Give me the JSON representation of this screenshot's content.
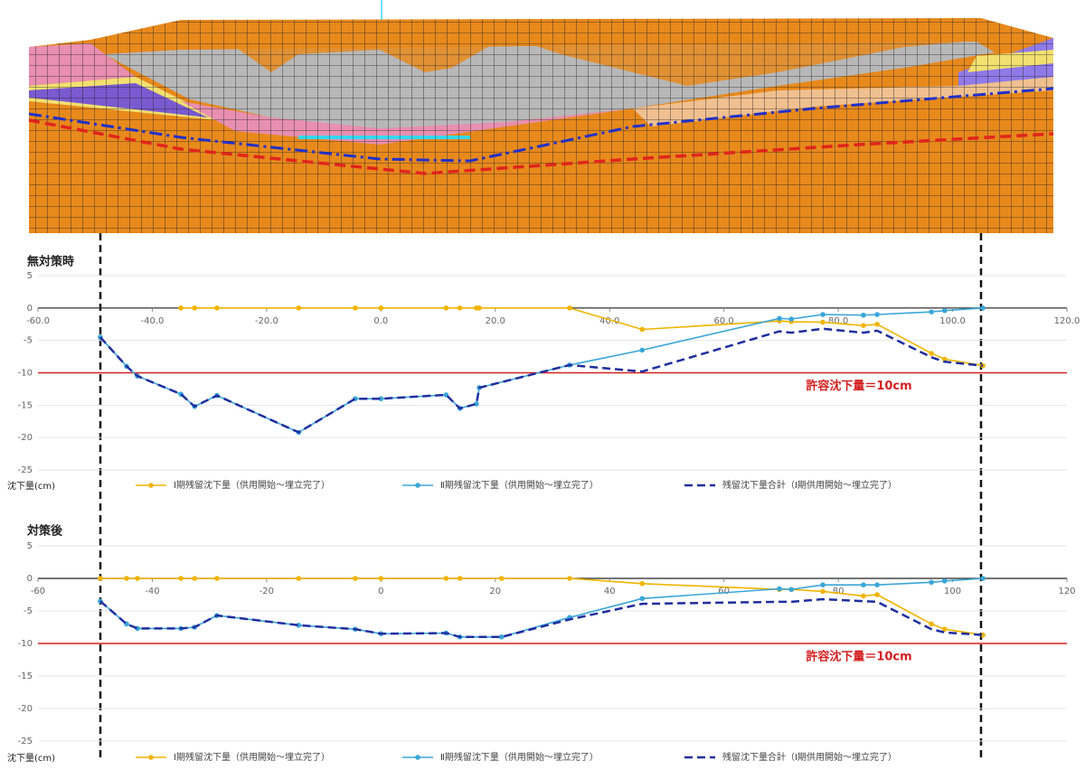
{
  "chart_data": [
    {
      "type": "line",
      "title": "無対策時",
      "y_label": "沈下量(cm)",
      "x": [
        -49.1,
        -44.5,
        -42.6,
        -35.0,
        -32.6,
        -28.7,
        -14.4,
        -4.5,
        0,
        11.4,
        13.8,
        16.7,
        17.2,
        33.0,
        45.7,
        69.7,
        71.8,
        77.3,
        84.4,
        86.8,
        96.3,
        98.6,
        105.3
      ],
      "xlim": [
        -60,
        120
      ],
      "xticks": [
        {
          "value": -60,
          "label": "-60.0"
        },
        {
          "value": -40,
          "label": "-40.0"
        },
        {
          "value": -20,
          "label": "-20.0"
        },
        {
          "value": 0,
          "label": "0.0"
        },
        {
          "value": 20,
          "label": "20.0"
        },
        {
          "value": 40,
          "label": "40.0"
        },
        {
          "value": 60,
          "label": "60.0"
        },
        {
          "value": 80,
          "label": "80.0"
        },
        {
          "value": 100,
          "label": "100.0"
        },
        {
          "value": 120,
          "label": "120.0"
        }
      ],
      "ylim": [
        -25,
        5
      ],
      "yticks": [
        5,
        0,
        -5,
        -10,
        -15,
        -20,
        -25
      ],
      "grid": true,
      "series": [
        {
          "name": "Ⅰ期残留沈下量（供用開始～埋立完了）",
          "color": "#f0b400",
          "markers": true,
          "dashed": false,
          "values": [
            null,
            null,
            null,
            0,
            0,
            0,
            0,
            0,
            0,
            0,
            0,
            0,
            0,
            0,
            -3.3,
            -2.0,
            -2.1,
            -2.2,
            -2.7,
            -2.5,
            -7.0,
            -7.9,
            -8.9
          ]
        },
        {
          "name": "Ⅱ期残留沈下量（供用開始～埋立完了）",
          "color": "#3aa6d8",
          "markers": true,
          "dashed": false,
          "values": [
            -4.5,
            -9.0,
            -10.5,
            -13.3,
            -15.2,
            -13.5,
            -19.2,
            -14.0,
            -14.0,
            -13.4,
            -15.5,
            -14.8,
            -12.3,
            -8.8,
            -6.5,
            -1.6,
            -1.7,
            -1.0,
            -1.1,
            -1.0,
            -0.6,
            -0.4,
            0
          ]
        },
        {
          "name": "残留沈下量合計（Ⅰ期供用開始～埋立完了）",
          "color": "#1f2e9e",
          "markers": false,
          "dashed": true,
          "values": [
            -4.5,
            -9.0,
            -10.5,
            -13.3,
            -15.2,
            -13.5,
            -19.2,
            -14.0,
            -14.0,
            -13.4,
            -15.5,
            -14.8,
            -12.3,
            -8.8,
            -9.8,
            -3.6,
            -3.8,
            -3.2,
            -3.8,
            -3.5,
            -7.6,
            -8.3,
            -8.9
          ]
        }
      ],
      "reference_line": {
        "value": -10,
        "label": "許容沈下量＝10cm",
        "color": "#d42020"
      }
    },
    {
      "type": "line",
      "title": "対策後",
      "y_label": "沈下量(cm)",
      "x": [
        -49.1,
        -44.5,
        -42.6,
        -35.0,
        -32.6,
        -28.7,
        -14.4,
        -4.5,
        0,
        11.4,
        13.8,
        21.1,
        33.0,
        45.7,
        69.7,
        71.8,
        77.3,
        84.4,
        86.8,
        96.3,
        98.6,
        105.3
      ],
      "xlim": [
        -60,
        120
      ],
      "xticks": [
        -60,
        -40,
        -20,
        0,
        20,
        40,
        60,
        80,
        100,
        120
      ],
      "ylim": [
        -25,
        5
      ],
      "yticks": [
        5,
        0,
        -5,
        -10,
        -15,
        -20,
        -25
      ],
      "grid": true,
      "series": [
        {
          "name": "Ⅰ期残留沈下量（供用開始～埋立完了）",
          "color": "#f0b400",
          "markers": true,
          "dashed": false,
          "values": [
            0,
            0,
            0,
            0,
            0,
            0,
            0,
            0,
            0,
            0,
            0,
            0,
            0,
            -0.8,
            -1.7,
            -1.7,
            -2.0,
            -2.7,
            -2.5,
            -7.0,
            -7.8,
            -8.7
          ]
        },
        {
          "name": "Ⅱ期残留沈下量（供用開始～埋立完了）",
          "color": "#3aa6d8",
          "markers": true,
          "dashed": false,
          "values": [
            -3.5,
            -7.0,
            -7.7,
            -7.7,
            -7.5,
            -5.7,
            -7.2,
            -7.8,
            -8.5,
            -8.4,
            -9.0,
            -9.0,
            -6.0,
            -3.1,
            -1.6,
            -1.7,
            -1.0,
            -1.0,
            -1.0,
            -0.6,
            -0.4,
            0
          ]
        },
        {
          "name": "残留沈下量合計（Ⅰ期供用開始～埋立完了）",
          "color": "#1f2e9e",
          "markers": false,
          "dashed": true,
          "values": [
            -3.5,
            -7.0,
            -7.7,
            -7.7,
            -7.5,
            -5.7,
            -7.2,
            -7.8,
            -8.5,
            -8.4,
            -9.0,
            -9.0,
            -6.3,
            -3.9,
            -3.6,
            -3.6,
            -3.2,
            -3.5,
            -3.6,
            -7.8,
            -8.3,
            -8.7
          ]
        }
      ],
      "reference_line": {
        "value": -10,
        "label": "許容沈下量＝10cm",
        "color": "#d42020"
      }
    }
  ]
}
